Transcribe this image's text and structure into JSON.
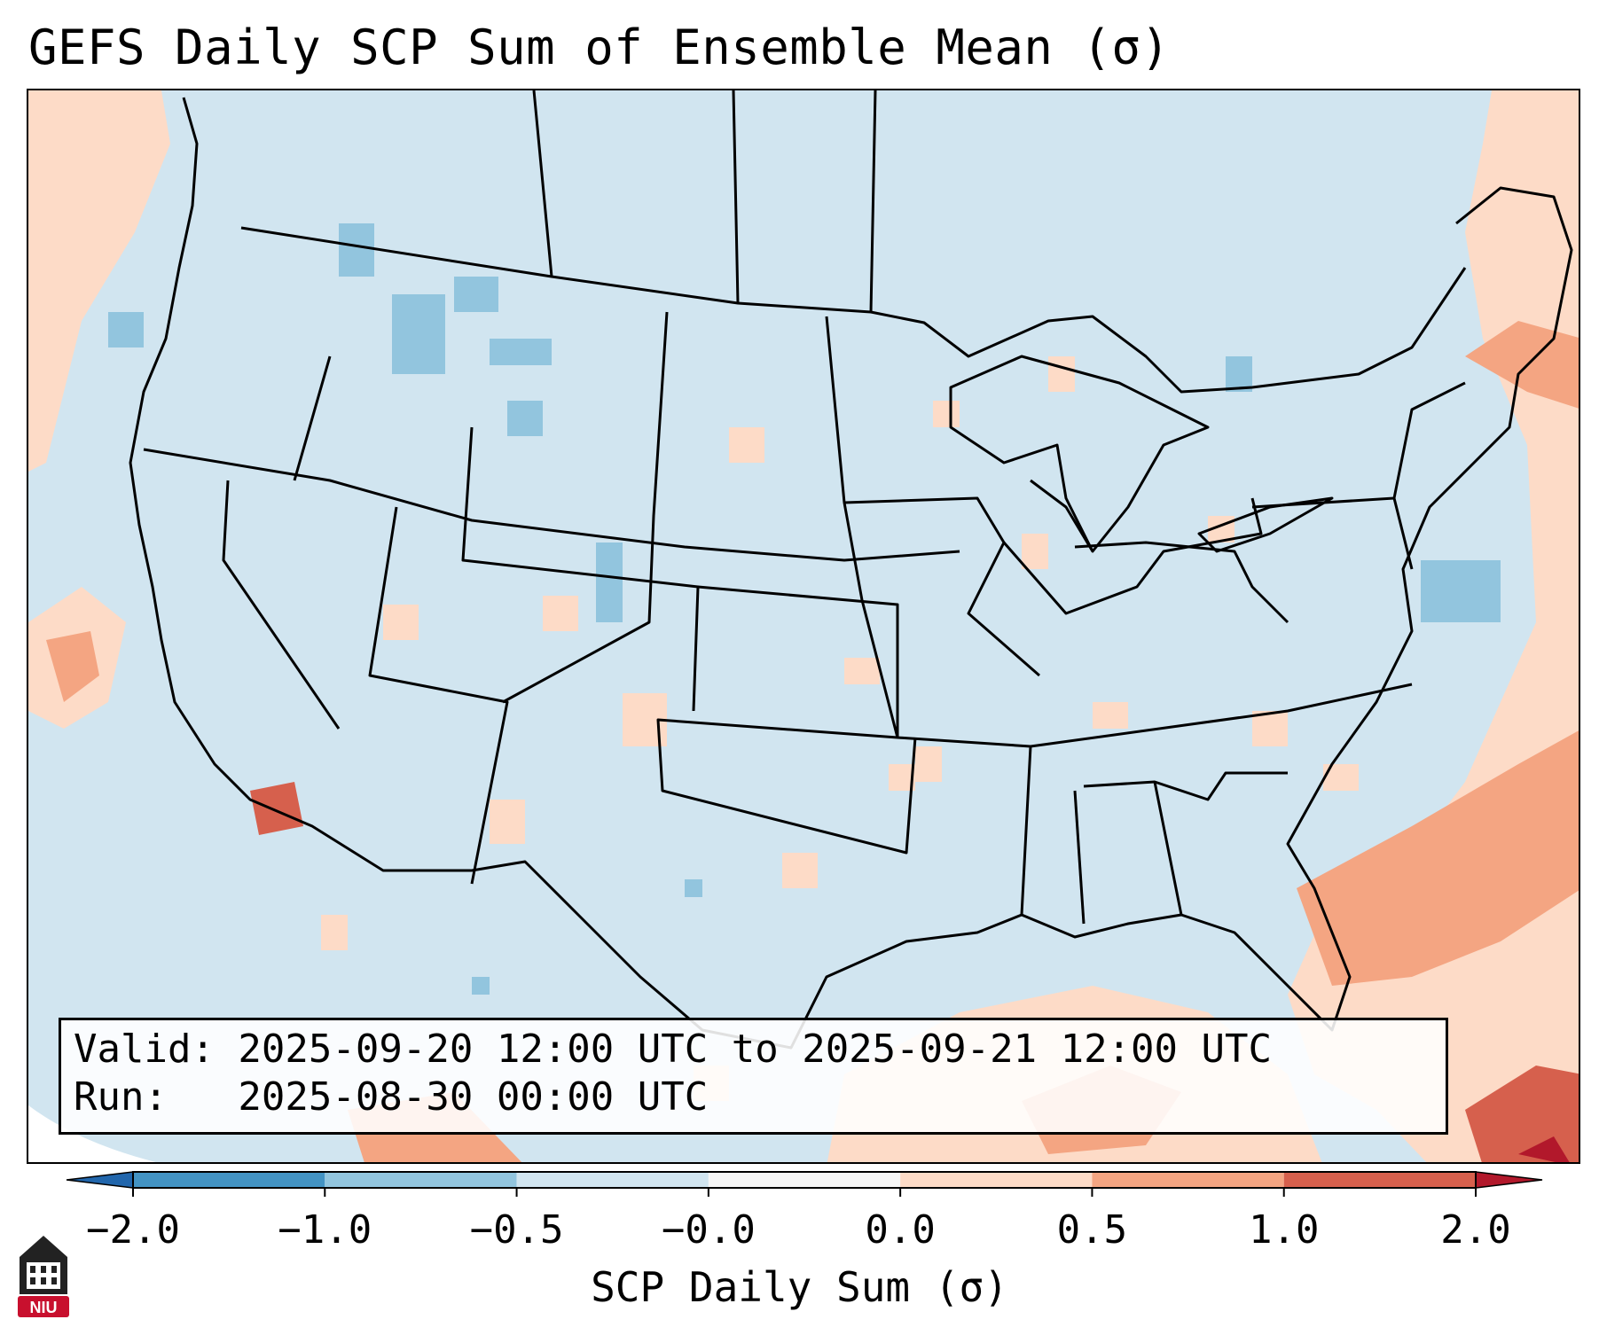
{
  "title": "GEFS Daily SCP Sum of Ensemble Mean (σ)",
  "info": {
    "valid_line": "Valid: 2025-09-20 12:00 UTC to 2025-09-21 12:00 UTC",
    "run_line": "Run:   2025-08-30 00:00 UTC"
  },
  "colorbar": {
    "label": "SCP Daily Sum (σ)",
    "ticks": [
      "−2.0",
      "−1.0",
      "−0.5",
      "−0.0",
      "0.0",
      "0.5",
      "1.0",
      "2.0"
    ],
    "bins": [
      {
        "color": "#4393c3"
      },
      {
        "color": "#92c5de"
      },
      {
        "color": "#d1e5f0"
      },
      {
        "color": "#f7f7f7"
      },
      {
        "color": "#fddbc7"
      },
      {
        "color": "#f4a582"
      },
      {
        "color": "#d6604d"
      }
    ],
    "extend_low_color": "#2166ac",
    "extend_high_color": "#b2182b"
  },
  "map": {
    "background_value_color": "#d1e5f0",
    "positive_color": "#fddbc7",
    "moderate_color": "#f4a582",
    "high_color": "#d6604d",
    "extreme_color": "#b2182b",
    "negative_color": "#92c5de"
  },
  "logo": {
    "text": "NIU",
    "color": "#c8102e"
  }
}
